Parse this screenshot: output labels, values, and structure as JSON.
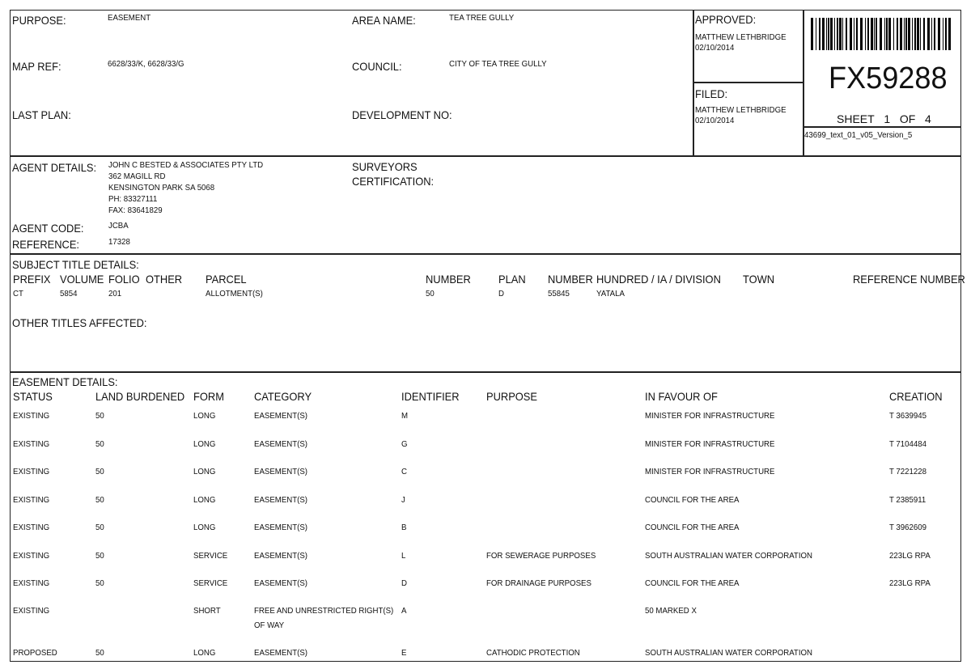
{
  "header": {
    "purpose_label": "PURPOSE:",
    "purpose": "EASEMENT",
    "map_ref_label": "MAP REF:",
    "map_ref": "6628/33/K, 6628/33/G",
    "last_plan_label": "LAST PLAN:",
    "area_name_label": "AREA NAME:",
    "area_name": "TEA TREE GULLY",
    "council_label": "COUNCIL:",
    "council": "CITY OF TEA TREE GULLY",
    "development_no_label": "DEVELOPMENT NO:",
    "approved_label": "APPROVED:",
    "approved_by": "MATTHEW LETHBRIDGE",
    "approved_date": "02/10/2014",
    "filed_label": "FILED:",
    "filed_by": "MATTHEW LETHBRIDGE",
    "filed_date": "02/10/2014",
    "plan_number": "FX59288",
    "sheet_label": "SHEET",
    "sheet": "1",
    "of_label": "OF",
    "sheet_total": "4",
    "version": "43699_text_01_v05_Version_5"
  },
  "agent": {
    "details_label": "AGENT DETAILS:",
    "lines": [
      "JOHN C BESTED & ASSOCIATES PTY LTD",
      "362 MAGILL RD",
      "KENSINGTON PARK SA 5068",
      "PH: 83327111",
      "FAX: 83641829"
    ],
    "code_label": "AGENT CODE:",
    "code": "JCBA",
    "reference_label": "REFERENCE:",
    "reference": "17328",
    "surveyors_label_1": "SURVEYORS",
    "surveyors_label_2": "CERTIFICATION:"
  },
  "subject": {
    "title": "SUBJECT TITLE DETAILS:",
    "headers": [
      "PREFIX",
      "VOLUME",
      "FOLIO",
      "OTHER",
      "PARCEL",
      "NUMBER",
      "PLAN",
      "NUMBER",
      "HUNDRED / IA / DIVISION",
      "TOWN",
      "REFERENCE NUMBER"
    ],
    "row": [
      "CT",
      "5854",
      "201",
      "",
      "ALLOTMENT(S)",
      "50",
      "D",
      "55845",
      "YATALA",
      "",
      ""
    ],
    "other_titles_label": "OTHER TITLES AFFECTED:"
  },
  "easements": {
    "title": "EASEMENT DETAILS:",
    "headers": [
      "STATUS",
      "LAND BURDENED",
      "FORM",
      "CATEGORY",
      "IDENTIFIER",
      "PURPOSE",
      "IN FAVOUR OF",
      "CREATION"
    ],
    "rows": [
      [
        "EXISTING",
        "50",
        "LONG",
        "EASEMENT(S)",
        "M",
        "",
        "MINISTER FOR INFRASTRUCTURE",
        "T 3639945"
      ],
      [
        "EXISTING",
        "50",
        "LONG",
        "EASEMENT(S)",
        "G",
        "",
        "MINISTER FOR INFRASTRUCTURE",
        "T 7104484"
      ],
      [
        "EXISTING",
        "50",
        "LONG",
        "EASEMENT(S)",
        "C",
        "",
        "MINISTER FOR INFRASTRUCTURE",
        "T 7221228"
      ],
      [
        "EXISTING",
        "50",
        "LONG",
        "EASEMENT(S)",
        "J",
        "",
        "COUNCIL FOR THE AREA",
        "T 2385911"
      ],
      [
        "EXISTING",
        "50",
        "LONG",
        "EASEMENT(S)",
        "B",
        "",
        "COUNCIL FOR THE AREA",
        "T 3962609"
      ],
      [
        "EXISTING",
        "50",
        "SERVICE",
        "EASEMENT(S)",
        "L",
        "FOR SEWERAGE PURPOSES",
        "SOUTH AUSTRALIAN WATER CORPORATION",
        "223LG RPA"
      ],
      [
        "EXISTING",
        "50",
        "SERVICE",
        "EASEMENT(S)",
        "D",
        "FOR DRAINAGE PURPOSES",
        "COUNCIL FOR THE AREA",
        "223LG RPA"
      ],
      [
        "EXISTING",
        "",
        "SHORT",
        "FREE AND UNRESTRICTED RIGHT(S)\nOF WAY",
        "A",
        "",
        "50 MARKED X",
        ""
      ],
      [
        "PROPOSED",
        "50",
        "LONG",
        "EASEMENT(S)",
        "E",
        "CATHODIC PROTECTION",
        "SOUTH AUSTRALIAN WATER CORPORATION",
        ""
      ]
    ]
  }
}
